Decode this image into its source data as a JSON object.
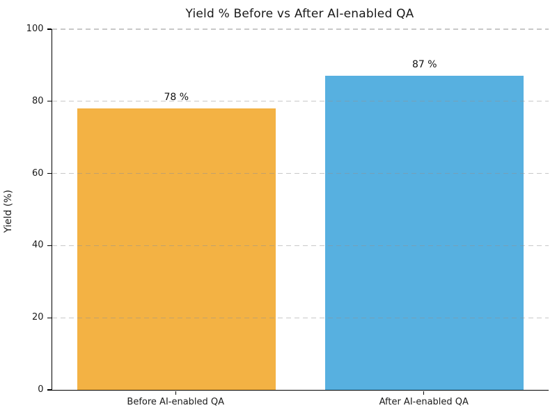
{
  "chart_data": {
    "type": "bar",
    "title": "Yield % Before vs After AI-enabled QA",
    "categories": [
      "Before AI-enabled QA",
      "After AI-enabled QA"
    ],
    "values": [
      78,
      87
    ],
    "value_labels": [
      "78 %",
      "87 %"
    ],
    "bar_colors": [
      "#F3B244",
      "#57B0E0"
    ],
    "xlabel": "",
    "ylabel": "Yield (%)",
    "ylim": [
      0,
      100
    ],
    "yticks": [
      0,
      20,
      40,
      60,
      80,
      100
    ],
    "bar_width_fraction": 0.8,
    "grid": "horizontal-dashed-over-bars",
    "gridline_color": "#c6c6c6",
    "legend": "none",
    "background": "#ffffff",
    "text_color": "#1a1a1a"
  }
}
